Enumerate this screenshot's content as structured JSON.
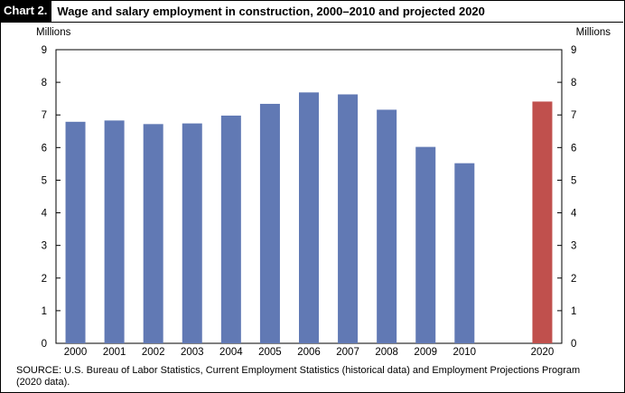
{
  "header": {
    "badge": "Chart 2.",
    "title": "Wage and salary employment in construction, 2000–2010 and projected 2020"
  },
  "axes": {
    "left_unit": "Millions",
    "right_unit": "Millions"
  },
  "source": "SOURCE:  U.S. Bureau of Labor Statistics, Current Employment Statistics (historical data) and Employment Projections Program (2020 data).",
  "colors": {
    "historical": "#6179b4",
    "projected": "#c0504d"
  },
  "chart_data": {
    "type": "bar",
    "title": "Wage and salary employment in construction, 2000–2010 and projected 2020",
    "xlabel": "",
    "ylabel": "Millions",
    "ylim": [
      0,
      9
    ],
    "yticks": [
      0,
      1,
      2,
      3,
      4,
      5,
      6,
      7,
      8,
      9
    ],
    "grid": false,
    "categories": [
      "2000",
      "2001",
      "2002",
      "2003",
      "2004",
      "2005",
      "2006",
      "2007",
      "2008",
      "2009",
      "2010",
      "2020"
    ],
    "values": [
      6.79,
      6.83,
      6.72,
      6.74,
      6.98,
      7.34,
      7.69,
      7.63,
      7.16,
      6.02,
      5.52,
      7.41
    ],
    "projected": [
      false,
      false,
      false,
      false,
      false,
      false,
      false,
      false,
      false,
      false,
      false,
      true
    ]
  }
}
